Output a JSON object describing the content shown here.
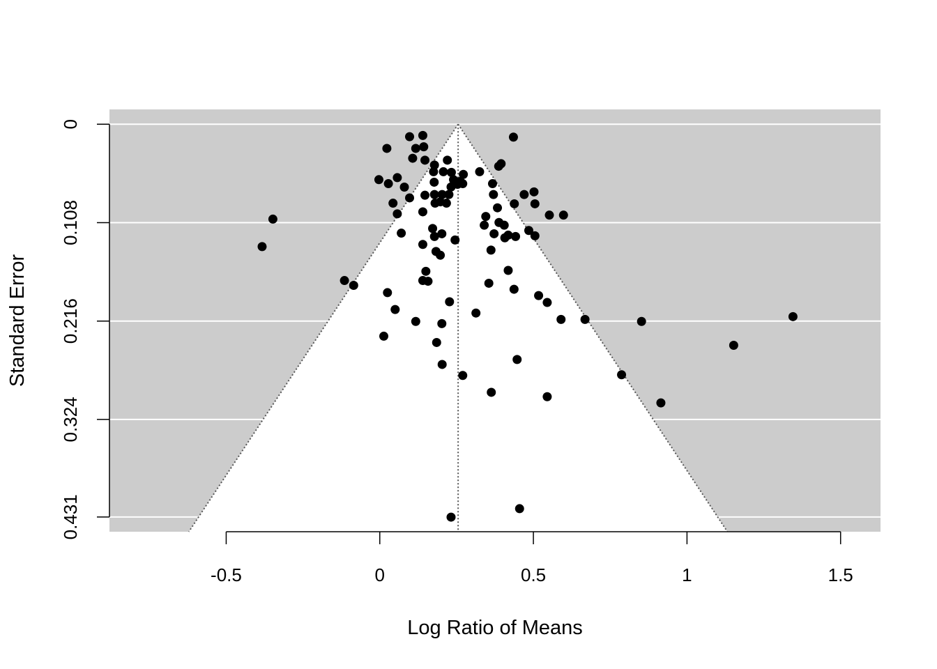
{
  "chart_data": {
    "type": "scatter",
    "subtype": "funnel",
    "xlabel": "Log Ratio of Means",
    "ylabel": "Standard Error",
    "xlim": [
      -0.88,
      1.63
    ],
    "ylim": [
      0.4472,
      -0.0163
    ],
    "y_reversed": true,
    "x_ticks": [
      -0.5,
      0,
      0.5,
      1,
      1.5
    ],
    "x_tick_labels": [
      "-0.5",
      "0",
      "0.5",
      "1",
      "1.5"
    ],
    "y_ticks": [
      0,
      0.108,
      0.216,
      0.324,
      0.431
    ],
    "y_tick_labels": [
      "0",
      "0.108",
      "0.216",
      "0.324",
      "0.431"
    ],
    "grid": "horizontal",
    "background_color": "#cccccc",
    "funnel_fill": "#ffffff",
    "point_color": "#000000",
    "pooled_estimate": 0.255,
    "funnel_z": 1.96,
    "points": [
      {
        "x": 0.097,
        "y": 0.0136
      },
      {
        "x": 0.14,
        "y": 0.0123
      },
      {
        "x": 0.435,
        "y": 0.0141
      },
      {
        "x": 0.023,
        "y": 0.0265
      },
      {
        "x": 0.117,
        "y": 0.0265
      },
      {
        "x": 0.143,
        "y": 0.0247
      },
      {
        "x": 0.107,
        "y": 0.0373
      },
      {
        "x": 0.147,
        "y": 0.0394
      },
      {
        "x": 0.22,
        "y": 0.0394
      },
      {
        "x": 0.178,
        "y": 0.0448
      },
      {
        "x": 0.395,
        "y": 0.0433
      },
      {
        "x": 0.387,
        "y": 0.0461
      },
      {
        "x": 0.175,
        "y": 0.0521
      },
      {
        "x": 0.207,
        "y": 0.0521
      },
      {
        "x": 0.233,
        "y": 0.0528
      },
      {
        "x": 0.325,
        "y": 0.0521
      },
      {
        "x": 0.272,
        "y": 0.055
      },
      {
        "x": -0.003,
        "y": 0.0608
      },
      {
        "x": 0.057,
        "y": 0.0586
      },
      {
        "x": 0.028,
        "y": 0.0652
      },
      {
        "x": 0.177,
        "y": 0.0636
      },
      {
        "x": 0.24,
        "y": 0.0608
      },
      {
        "x": 0.262,
        "y": 0.0628
      },
      {
        "x": 0.253,
        "y": 0.0659
      },
      {
        "x": 0.27,
        "y": 0.0652
      },
      {
        "x": 0.367,
        "y": 0.0652
      },
      {
        "x": 0.232,
        "y": 0.0688
      },
      {
        "x": 0.08,
        "y": 0.069
      },
      {
        "x": 0.147,
        "y": 0.0779
      },
      {
        "x": 0.178,
        "y": 0.0771
      },
      {
        "x": 0.203,
        "y": 0.0771
      },
      {
        "x": 0.225,
        "y": 0.0771
      },
      {
        "x": 0.37,
        "y": 0.0771
      },
      {
        "x": 0.47,
        "y": 0.0771
      },
      {
        "x": 0.502,
        "y": 0.0742
      },
      {
        "x": 0.097,
        "y": 0.0808
      },
      {
        "x": 0.043,
        "y": 0.0866
      },
      {
        "x": 0.18,
        "y": 0.0866
      },
      {
        "x": 0.197,
        "y": 0.0851
      },
      {
        "x": 0.217,
        "y": 0.0866
      },
      {
        "x": 0.438,
        "y": 0.0873
      },
      {
        "x": 0.505,
        "y": 0.0873
      },
      {
        "x": 0.383,
        "y": 0.0917
      },
      {
        "x": 0.14,
        "y": 0.0961
      },
      {
        "x": 0.057,
        "y": 0.0983
      },
      {
        "x": 0.345,
        "y": 0.1012
      },
      {
        "x": 0.552,
        "y": 0.0997
      },
      {
        "x": 0.598,
        "y": 0.0997
      },
      {
        "x": -0.348,
        "y": 0.1041
      },
      {
        "x": 0.388,
        "y": 0.1078
      },
      {
        "x": 0.34,
        "y": 0.1108
      },
      {
        "x": 0.405,
        "y": 0.1108
      },
      {
        "x": 0.172,
        "y": 0.1144
      },
      {
        "x": 0.07,
        "y": 0.1195
      },
      {
        "x": 0.202,
        "y": 0.1202
      },
      {
        "x": 0.178,
        "y": 0.1232
      },
      {
        "x": 0.372,
        "y": 0.1202
      },
      {
        "x": 0.418,
        "y": 0.1217
      },
      {
        "x": 0.407,
        "y": 0.1246
      },
      {
        "x": 0.485,
        "y": 0.1166
      },
      {
        "x": 0.442,
        "y": 0.1232
      },
      {
        "x": 0.505,
        "y": 0.1224
      },
      {
        "x": 0.245,
        "y": 0.127
      },
      {
        "x": 0.14,
        "y": 0.1319
      },
      {
        "x": -0.383,
        "y": 0.1343
      },
      {
        "x": 0.183,
        "y": 0.1396
      },
      {
        "x": 0.197,
        "y": 0.1437
      },
      {
        "x": 0.362,
        "y": 0.1381
      },
      {
        "x": 0.15,
        "y": 0.1614
      },
      {
        "x": 0.418,
        "y": 0.1604
      },
      {
        "x": -0.115,
        "y": 0.1715
      },
      {
        "x": -0.085,
        "y": 0.1768
      },
      {
        "x": 0.14,
        "y": 0.1715
      },
      {
        "x": 0.157,
        "y": 0.1723
      },
      {
        "x": 0.355,
        "y": 0.1745
      },
      {
        "x": 0.437,
        "y": 0.1811
      },
      {
        "x": 0.025,
        "y": 0.1848
      },
      {
        "x": 0.517,
        "y": 0.188
      },
      {
        "x": 0.545,
        "y": 0.1956
      },
      {
        "x": 0.227,
        "y": 0.1948
      },
      {
        "x": 0.05,
        "y": 0.2033
      },
      {
        "x": 0.313,
        "y": 0.2072
      },
      {
        "x": 0.59,
        "y": 0.2142
      },
      {
        "x": 0.668,
        "y": 0.2142
      },
      {
        "x": 0.117,
        "y": 0.2164
      },
      {
        "x": 0.202,
        "y": 0.2188
      },
      {
        "x": 0.852,
        "y": 0.2164
      },
      {
        "x": 1.345,
        "y": 0.2111
      },
      {
        "x": 0.013,
        "y": 0.2326
      },
      {
        "x": 0.185,
        "y": 0.2395
      },
      {
        "x": 1.152,
        "y": 0.2426
      },
      {
        "x": 0.447,
        "y": 0.2582
      },
      {
        "x": 0.203,
        "y": 0.2636
      },
      {
        "x": 0.27,
        "y": 0.2757
      },
      {
        "x": 0.787,
        "y": 0.2749
      },
      {
        "x": 0.363,
        "y": 0.2942
      },
      {
        "x": 0.545,
        "y": 0.299
      },
      {
        "x": 0.915,
        "y": 0.3058
      },
      {
        "x": 0.455,
        "y": 0.4219
      },
      {
        "x": 0.232,
        "y": 0.4312
      }
    ]
  }
}
